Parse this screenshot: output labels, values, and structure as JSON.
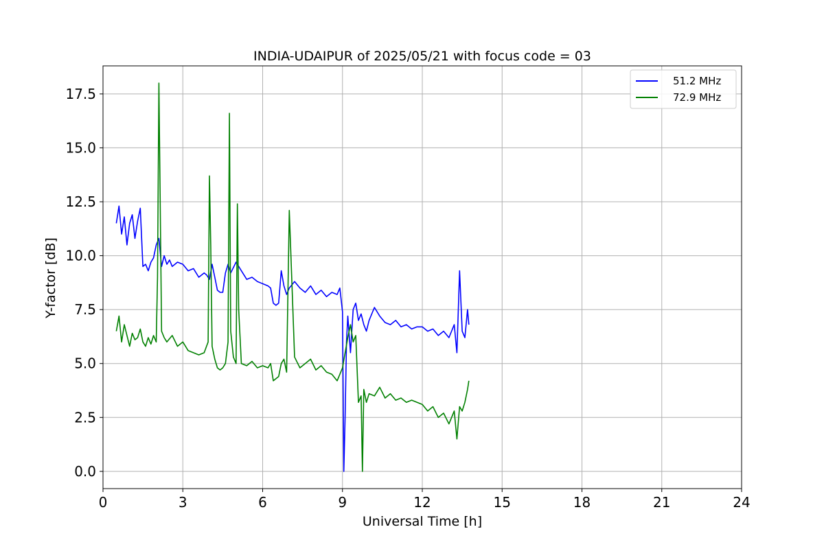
{
  "chart_data": {
    "type": "line",
    "title": "INDIA-UDAIPUR of 2025/05/21 with focus code = 03",
    "xlabel": "Universal Time [h]",
    "ylabel": "Y-factor [dB]",
    "xlim": [
      0,
      24
    ],
    "ylim": [
      -0.8,
      18.8
    ],
    "xticks": [
      0,
      3,
      6,
      9,
      12,
      15,
      18,
      21,
      24
    ],
    "xtick_labels": [
      "0",
      "3",
      "6",
      "9",
      "12",
      "15",
      "18",
      "21",
      "24"
    ],
    "yticks": [
      0,
      2.5,
      5,
      7.5,
      10,
      12.5,
      15,
      17.5
    ],
    "ytick_labels": [
      "0.0",
      "2.5",
      "5.0",
      "7.5",
      "10.0",
      "12.5",
      "15.0",
      "17.5"
    ],
    "grid": true,
    "legend_position": "top-right",
    "series": [
      {
        "name": "51.2 MHz",
        "color": "#0000ff",
        "x": [
          0.5,
          0.6,
          0.7,
          0.8,
          0.9,
          1.0,
          1.1,
          1.2,
          1.3,
          1.4,
          1.5,
          1.6,
          1.7,
          1.8,
          1.9,
          2.0,
          2.1,
          2.2,
          2.3,
          2.4,
          2.5,
          2.6,
          2.8,
          3.0,
          3.2,
          3.4,
          3.6,
          3.8,
          3.9,
          4.0,
          4.1,
          4.2,
          4.3,
          4.4,
          4.5,
          4.6,
          4.7,
          4.8,
          5.0,
          5.2,
          5.4,
          5.6,
          5.8,
          6.0,
          6.2,
          6.3,
          6.4,
          6.5,
          6.6,
          6.7,
          6.8,
          6.9,
          7.0,
          7.2,
          7.4,
          7.6,
          7.8,
          8.0,
          8.2,
          8.4,
          8.6,
          8.8,
          8.9,
          9.0,
          9.05,
          9.1,
          9.15,
          9.2,
          9.3,
          9.4,
          9.5,
          9.6,
          9.7,
          9.8,
          9.9,
          10.0,
          10.2,
          10.4,
          10.6,
          10.8,
          11.0,
          11.2,
          11.4,
          11.6,
          11.8,
          12.0,
          12.2,
          12.4,
          12.6,
          12.8,
          13.0,
          13.2,
          13.3,
          13.4,
          13.5,
          13.6,
          13.7,
          13.75
        ],
        "y": [
          11.5,
          12.3,
          11.0,
          11.8,
          10.5,
          11.5,
          11.9,
          10.8,
          11.6,
          12.2,
          9.5,
          9.6,
          9.3,
          9.7,
          9.9,
          10.5,
          10.8,
          9.5,
          10.0,
          9.6,
          9.8,
          9.5,
          9.7,
          9.6,
          9.3,
          9.4,
          9.0,
          9.2,
          9.1,
          8.9,
          9.6,
          9.0,
          8.4,
          8.3,
          8.3,
          9.2,
          9.6,
          9.2,
          9.7,
          9.3,
          8.9,
          9.0,
          8.8,
          8.7,
          8.6,
          8.5,
          7.8,
          7.7,
          7.8,
          9.3,
          8.6,
          8.2,
          8.5,
          8.8,
          8.5,
          8.3,
          8.6,
          8.2,
          8.4,
          8.1,
          8.3,
          8.2,
          8.5,
          7.4,
          0.0,
          2.5,
          6.0,
          7.2,
          5.5,
          7.5,
          7.8,
          7.0,
          7.3,
          6.8,
          6.5,
          7.0,
          7.6,
          7.2,
          6.9,
          6.8,
          7.0,
          6.7,
          6.8,
          6.6,
          6.7,
          6.7,
          6.5,
          6.6,
          6.3,
          6.5,
          6.2,
          6.8,
          5.5,
          9.3,
          6.5,
          6.2,
          7.5,
          6.8
        ]
      },
      {
        "name": "72.9 MHz",
        "color": "#008000",
        "x": [
          0.5,
          0.6,
          0.7,
          0.8,
          0.9,
          1.0,
          1.1,
          1.2,
          1.3,
          1.4,
          1.5,
          1.6,
          1.7,
          1.8,
          1.9,
          2.0,
          2.05,
          2.1,
          2.15,
          2.2,
          2.3,
          2.4,
          2.6,
          2.8,
          3.0,
          3.2,
          3.4,
          3.6,
          3.8,
          3.95,
          4.0,
          4.05,
          4.1,
          4.2,
          4.3,
          4.4,
          4.5,
          4.6,
          4.7,
          4.75,
          4.8,
          4.9,
          5.0,
          5.05,
          5.1,
          5.2,
          5.4,
          5.6,
          5.8,
          6.0,
          6.2,
          6.3,
          6.4,
          6.5,
          6.6,
          6.7,
          6.8,
          6.9,
          7.0,
          7.2,
          7.4,
          7.6,
          7.8,
          8.0,
          8.2,
          8.4,
          8.6,
          8.8,
          9.0,
          9.1,
          9.2,
          9.3,
          9.4,
          9.5,
          9.6,
          9.7,
          9.75,
          9.8,
          9.9,
          10.0,
          10.2,
          10.4,
          10.6,
          10.8,
          11.0,
          11.2,
          11.4,
          11.6,
          11.8,
          12.0,
          12.2,
          12.4,
          12.6,
          12.8,
          13.0,
          13.2,
          13.3,
          13.4,
          13.5,
          13.6,
          13.7,
          13.75
        ],
        "y": [
          6.5,
          7.2,
          6.0,
          6.8,
          6.3,
          5.8,
          6.4,
          6.1,
          6.2,
          6.6,
          6.0,
          5.8,
          6.2,
          5.9,
          6.3,
          6.0,
          9.0,
          18.0,
          12.5,
          6.5,
          6.2,
          6.0,
          6.3,
          5.8,
          6.0,
          5.6,
          5.5,
          5.4,
          5.5,
          6.0,
          13.7,
          10.5,
          5.8,
          5.2,
          4.8,
          4.7,
          4.8,
          5.0,
          6.0,
          16.6,
          6.5,
          5.3,
          5.0,
          12.4,
          7.5,
          5.0,
          4.9,
          5.1,
          4.8,
          4.9,
          4.8,
          5.0,
          4.2,
          4.3,
          4.4,
          5.0,
          5.2,
          4.6,
          12.1,
          5.3,
          4.8,
          5.0,
          5.2,
          4.7,
          4.9,
          4.6,
          4.5,
          4.2,
          4.8,
          5.5,
          6.2,
          6.8,
          6.0,
          6.3,
          3.2,
          3.5,
          0.0,
          3.8,
          3.2,
          3.6,
          3.5,
          3.9,
          3.4,
          3.6,
          3.3,
          3.4,
          3.2,
          3.3,
          3.2,
          3.1,
          2.8,
          3.0,
          2.5,
          2.7,
          2.2,
          2.8,
          1.5,
          3.0,
          2.8,
          3.2,
          3.8,
          4.2
        ]
      }
    ]
  }
}
